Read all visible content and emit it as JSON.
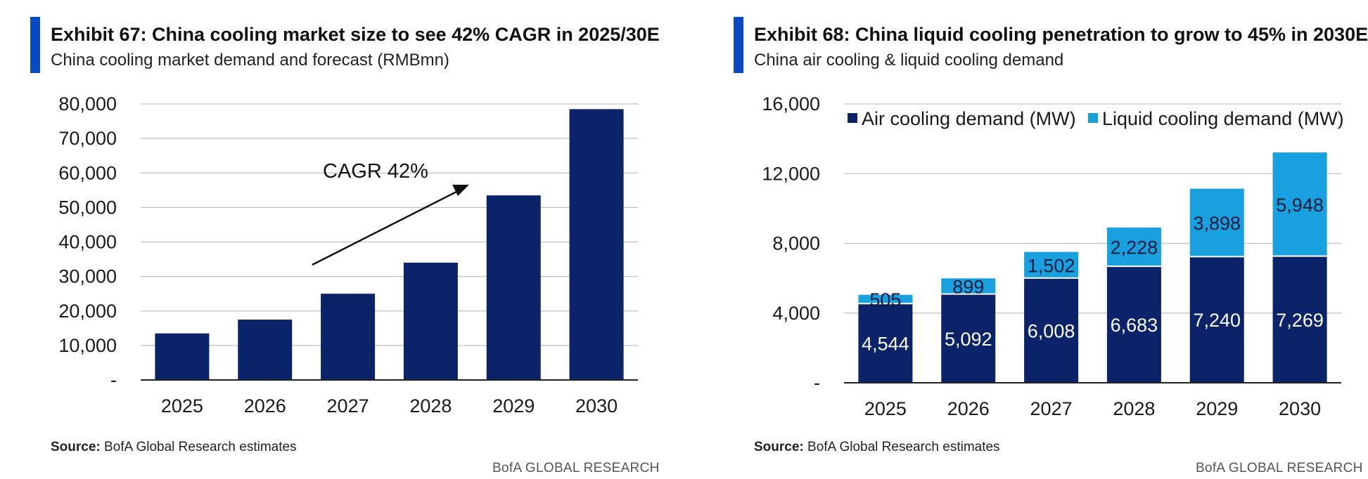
{
  "colors": {
    "accent": "#0a49c5",
    "navy": "#0b2368",
    "light_blue": "#19a0df",
    "grid": "#bfbfbf"
  },
  "exhibit67": {
    "title": "Exhibit 67: China cooling market size to see 42% CAGR in 2025/30E",
    "subtitle": "China cooling market demand and forecast (RMBmn)",
    "source_label": "Source:",
    "source_text": "BofA Global Research estimates",
    "footer": "BofA GLOBAL RESEARCH"
  },
  "exhibit68": {
    "title": "Exhibit 68: China liquid cooling penetration to grow to 45% in 2030E",
    "subtitle": "China air cooling & liquid cooling demand",
    "source_label": "Source:",
    "source_text": "BofA Global Research estimates",
    "footer": "BofA GLOBAL RESEARCH"
  },
  "chart_data": [
    {
      "type": "bar",
      "title": "China cooling market demand and forecast (RMBmn)",
      "categories": [
        "2025",
        "2026",
        "2027",
        "2028",
        "2029",
        "2030"
      ],
      "values": [
        13500,
        17500,
        25000,
        34000,
        53500,
        78500
      ],
      "ylim": [
        0,
        80000
      ],
      "yticks": [
        0,
        10000,
        20000,
        30000,
        40000,
        50000,
        60000,
        70000,
        80000
      ],
      "ytick_labels": [
        "-",
        "10,000",
        "20,000",
        "30,000",
        "40,000",
        "50,000",
        "60,000",
        "70,000",
        "80,000"
      ],
      "annotation": "CAGR 42%",
      "xlabel": "",
      "ylabel": "",
      "grid": true
    },
    {
      "type": "bar",
      "stacked": true,
      "title": "China air cooling & liquid cooling demand",
      "categories": [
        "2025",
        "2026",
        "2027",
        "2028",
        "2029",
        "2030"
      ],
      "series": [
        {
          "name": "Air cooling demand (MW)",
          "values": [
            4544,
            5092,
            6008,
            6683,
            7240,
            7269
          ],
          "labels": [
            "4,544",
            "5,092",
            "6,008",
            "6,683",
            "7,240",
            "7,269"
          ]
        },
        {
          "name": "Liquid cooling demand (MW)",
          "values": [
            505,
            899,
            1502,
            2228,
            3898,
            5948
          ],
          "labels": [
            "505",
            "899",
            "1,502",
            "2,228",
            "3,898",
            "5,948"
          ]
        }
      ],
      "ylim": [
        0,
        16000
      ],
      "yticks": [
        0,
        4000,
        8000,
        12000,
        16000
      ],
      "ytick_labels": [
        "-",
        "4,000",
        "8,000",
        "12,000",
        "16,000"
      ],
      "legend_position": "top",
      "xlabel": "",
      "ylabel": "",
      "grid": true
    }
  ]
}
